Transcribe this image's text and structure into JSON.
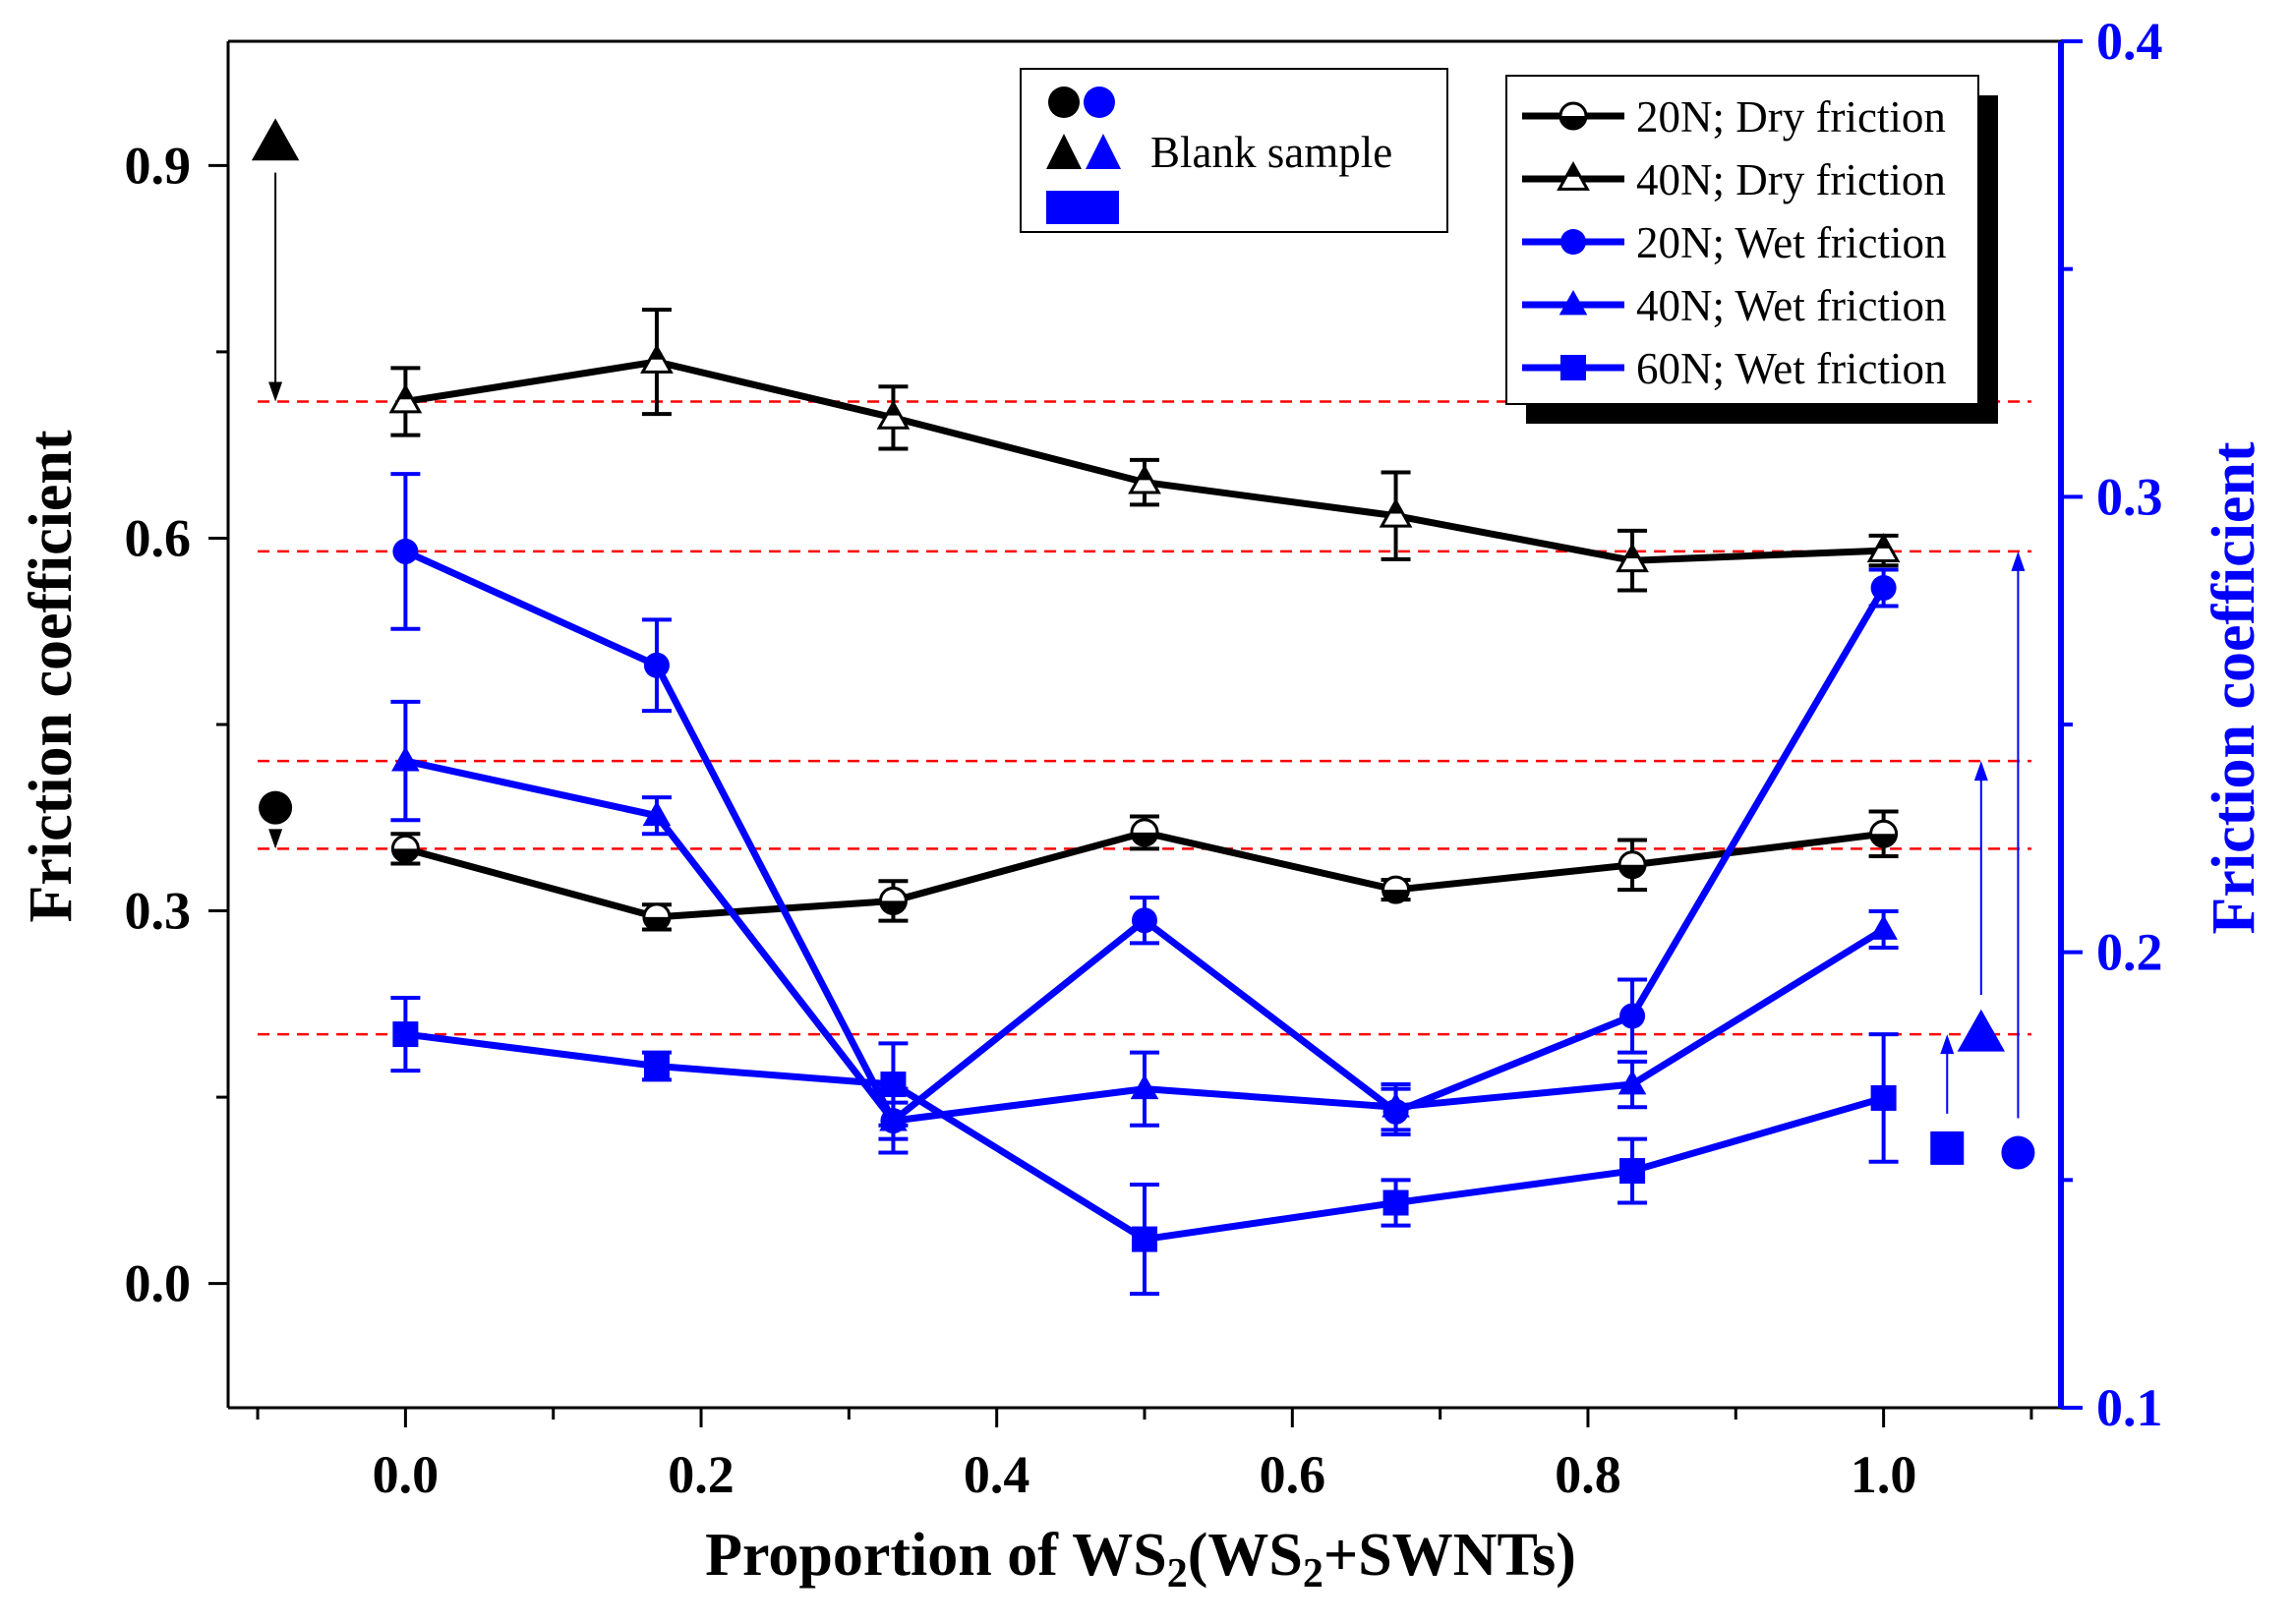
{
  "chart_data": {
    "type": "line",
    "xlabel": "Proportion of WS2(WS2+SWNTs)",
    "ylabel_left": "Friction coefficient",
    "ylabel_right": "Friction coefficient",
    "xlim": [
      -0.12,
      1.12
    ],
    "ylim_left": [
      -0.1,
      1.0
    ],
    "ylim_right": [
      0.1,
      0.4
    ],
    "x_ticks": [
      "0.0",
      "0.2",
      "0.4",
      "0.6",
      "0.8",
      "1.0"
    ],
    "y_left_ticks": [
      "0.0",
      "0.3",
      "0.6",
      "0.9"
    ],
    "y_right_ticks": [
      "0.1",
      "0.2",
      "0.3",
      "0.4"
    ],
    "colors": {
      "dry": "#000000",
      "wet": "#0000ff",
      "guide": "#ff0000"
    },
    "x": [
      0.0,
      0.17,
      0.33,
      0.5,
      0.67,
      0.83,
      1.0
    ],
    "series": [
      {
        "name": "20N; Dry friction",
        "axis": "left",
        "marker": "circle-open",
        "color": "#000000",
        "values": [
          0.35,
          0.295,
          0.308,
          0.363,
          0.317,
          0.337,
          0.362
        ],
        "errors": [
          0.012,
          0.01,
          0.016,
          0.013,
          0.008,
          0.02,
          0.018
        ]
      },
      {
        "name": "40N; Dry friction",
        "axis": "left",
        "marker": "triangle-open",
        "color": "#000000",
        "values": [
          0.71,
          0.742,
          0.697,
          0.645,
          0.618,
          0.582,
          0.59
        ],
        "errors": [
          0.027,
          0.042,
          0.025,
          0.018,
          0.035,
          0.024,
          0.012
        ]
      },
      {
        "name": "20N; Wet friction",
        "axis": "right",
        "marker": "circle",
        "color": "#0000ff",
        "values": [
          0.288,
          0.263,
          0.163,
          0.207,
          0.165,
          0.186,
          0.28
        ],
        "errors": [
          0.017,
          0.01,
          0.004,
          0.005,
          0.005,
          0.008,
          0.004
        ]
      },
      {
        "name": "40N; Wet friction",
        "axis": "right",
        "marker": "triangle",
        "color": "#0000ff",
        "values": [
          0.242,
          0.23,
          0.163,
          0.17,
          0.166,
          0.171,
          0.205
        ],
        "errors": [
          0.013,
          0.004,
          0.007,
          0.008,
          0.005,
          0.005,
          0.004
        ]
      },
      {
        "name": "60N; Wet friction",
        "axis": "right",
        "marker": "square",
        "color": "#0000ff",
        "values": [
          0.182,
          0.175,
          0.171,
          0.137,
          0.145,
          0.152,
          0.168
        ],
        "errors": [
          0.008,
          0.003,
          0.009,
          0.012,
          0.005,
          0.007,
          0.014
        ]
      }
    ],
    "blank_samples": [
      {
        "name": "20N dry blank",
        "axis": "left",
        "marker": "circle",
        "color": "#000000",
        "x": -0.088,
        "value": 0.383,
        "arrow_to": 0.35
      },
      {
        "name": "40N dry blank",
        "axis": "left",
        "marker": "triangle",
        "color": "#000000",
        "x": -0.088,
        "value": 0.918,
        "arrow_to": 0.71
      },
      {
        "name": "60N wet blank",
        "axis": "right",
        "marker": "square",
        "color": "#0000ff",
        "x": 1.043,
        "value": 0.157,
        "arrow_to": 0.182
      },
      {
        "name": "40N wet blank",
        "axis": "right",
        "marker": "triangle",
        "color": "#0000ff",
        "x": 1.066,
        "value": 0.182,
        "arrow_to": 0.242
      },
      {
        "name": "20N wet blank",
        "axis": "right",
        "marker": "circle",
        "color": "#0000ff",
        "x": 1.091,
        "value": 0.156,
        "arrow_to": 0.288
      }
    ],
    "reference_lines_left": [
      0.71,
      0.35
    ],
    "reference_lines_right": [
      0.288,
      0.242,
      0.182
    ],
    "legend_blank_label": "Blank sample",
    "legend_position": "top-right"
  }
}
